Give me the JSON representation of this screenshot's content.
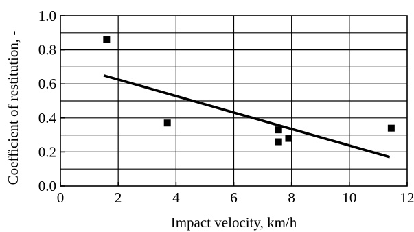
{
  "chart_data": {
    "type": "scatter",
    "title": "",
    "xlabel": "Impact velocity,  km/h",
    "ylabel": "Coefficient of restitution, -",
    "xlim": [
      0,
      12
    ],
    "ylim": [
      0.0,
      1.0
    ],
    "x_ticks": [
      0,
      2,
      4,
      6,
      8,
      10,
      12
    ],
    "x_tick_labels": [
      "0",
      "2",
      "4",
      "6",
      "8",
      "10",
      "12"
    ],
    "y_ticks": [
      0.0,
      0.2,
      0.4,
      0.6,
      0.8,
      1.0
    ],
    "y_tick_labels": [
      "0.0",
      "0.2",
      "0.4",
      "0.6",
      "0.8",
      "1.0"
    ],
    "grid": true,
    "points": [
      {
        "x": 1.6,
        "y": 0.86
      },
      {
        "x": 3.7,
        "y": 0.37
      },
      {
        "x": 7.55,
        "y": 0.33
      },
      {
        "x": 7.55,
        "y": 0.26
      },
      {
        "x": 7.9,
        "y": 0.28
      },
      {
        "x": 11.45,
        "y": 0.34
      }
    ],
    "trend_line": {
      "x": [
        1.5,
        11.4
      ],
      "y": [
        0.65,
        0.17
      ]
    },
    "colors": {
      "marker": "#000000",
      "line": "#000000",
      "grid": "#000000"
    }
  }
}
